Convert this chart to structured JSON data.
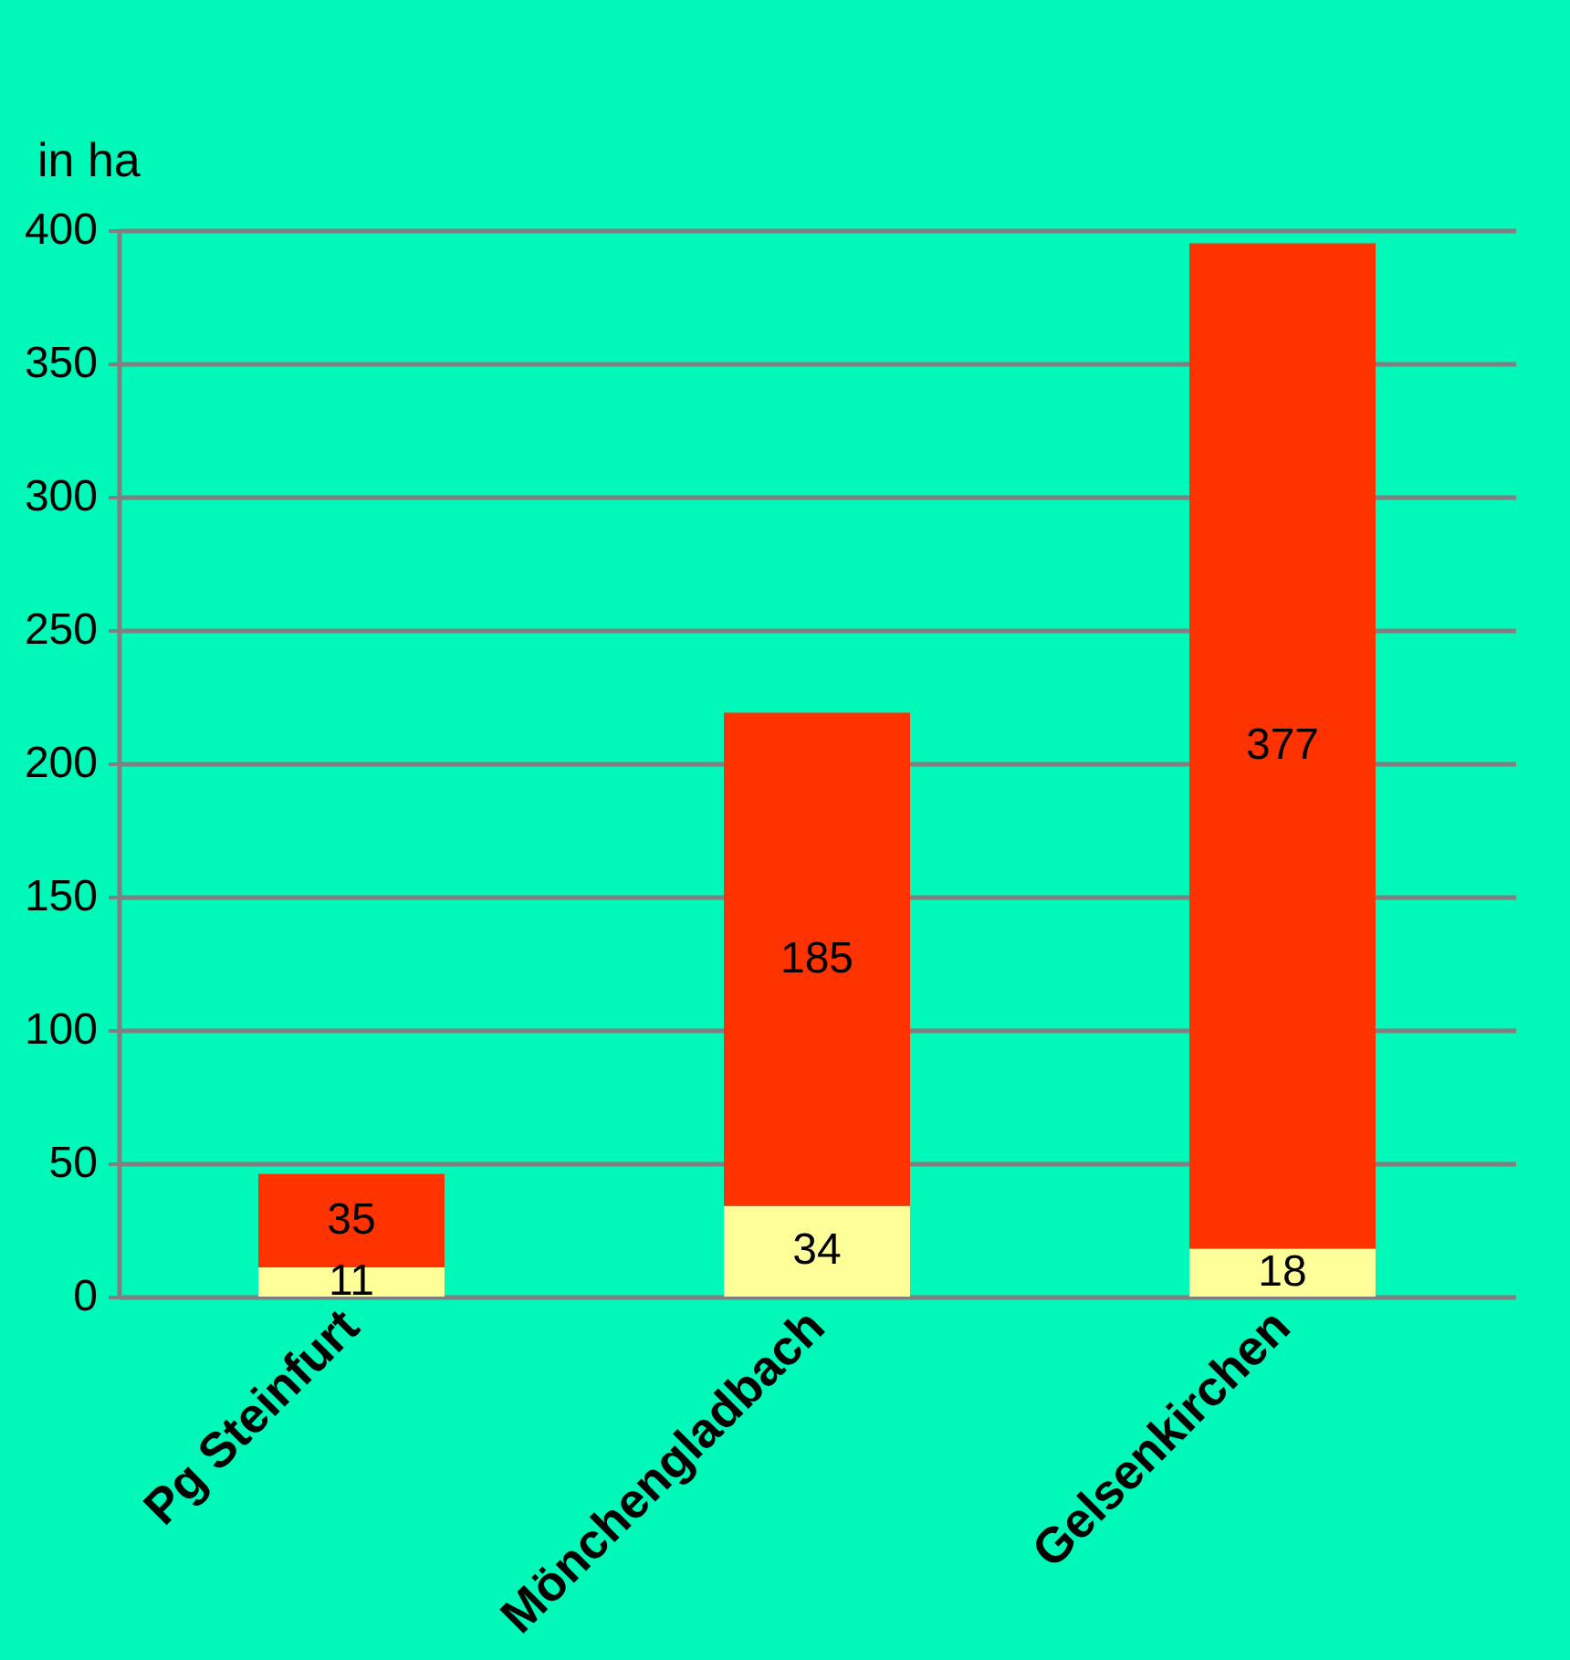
{
  "chart_data": {
    "type": "bar",
    "ylabel": "in ha",
    "categories": [
      "Pg Steinfurt",
      "Mönchengladbach",
      "Gelsenkirchen"
    ],
    "stacked": true,
    "series": [
      {
        "color": "#ffff99",
        "values": [
          11,
          34,
          18
        ]
      },
      {
        "color": "#ff3300",
        "values": [
          35,
          185,
          377
        ]
      }
    ],
    "ylim": [
      0,
      400
    ],
    "yticks": [
      0,
      50,
      100,
      150,
      200,
      250,
      300,
      350,
      400
    ],
    "grid": "y",
    "data_labels": true
  }
}
